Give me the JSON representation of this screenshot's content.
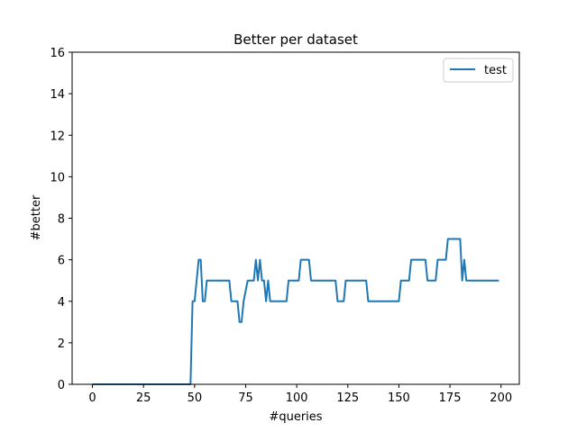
{
  "chart_data": {
    "type": "line",
    "title": "Better per dataset",
    "xlabel": "#queries",
    "ylabel": "#better",
    "xlim": [
      -9.95,
      208.95
    ],
    "ylim": [
      0,
      16
    ],
    "xticks": [
      0,
      25,
      50,
      75,
      100,
      125,
      150,
      175,
      200
    ],
    "yticks": [
      0,
      2,
      4,
      6,
      8,
      10,
      12,
      14,
      16
    ],
    "grid": false,
    "legend": "top-right",
    "series": [
      {
        "name": "test",
        "color": "#1f77b4",
        "x": [
          0,
          48,
          49,
          50,
          51,
          52,
          53,
          54,
          55,
          56,
          67,
          68,
          71,
          72,
          73,
          74,
          76,
          79,
          80,
          81,
          82,
          83,
          84,
          85,
          86,
          87,
          95,
          96,
          101,
          102,
          106,
          107,
          119,
          120,
          123,
          124,
          134,
          135,
          150,
          151,
          155,
          156,
          163,
          164,
          168,
          169,
          173,
          174,
          180,
          181,
          182,
          183,
          199
        ],
        "y": [
          0,
          0,
          4,
          4,
          5,
          6,
          6,
          4,
          4,
          5,
          5,
          4,
          4,
          3,
          3,
          4,
          5,
          5,
          6,
          5,
          6,
          5,
          5,
          4,
          5,
          4,
          4,
          5,
          5,
          6,
          6,
          5,
          5,
          4,
          4,
          5,
          5,
          4,
          4,
          5,
          5,
          6,
          6,
          5,
          5,
          6,
          6,
          7,
          7,
          5,
          6,
          5,
          5
        ]
      }
    ]
  }
}
